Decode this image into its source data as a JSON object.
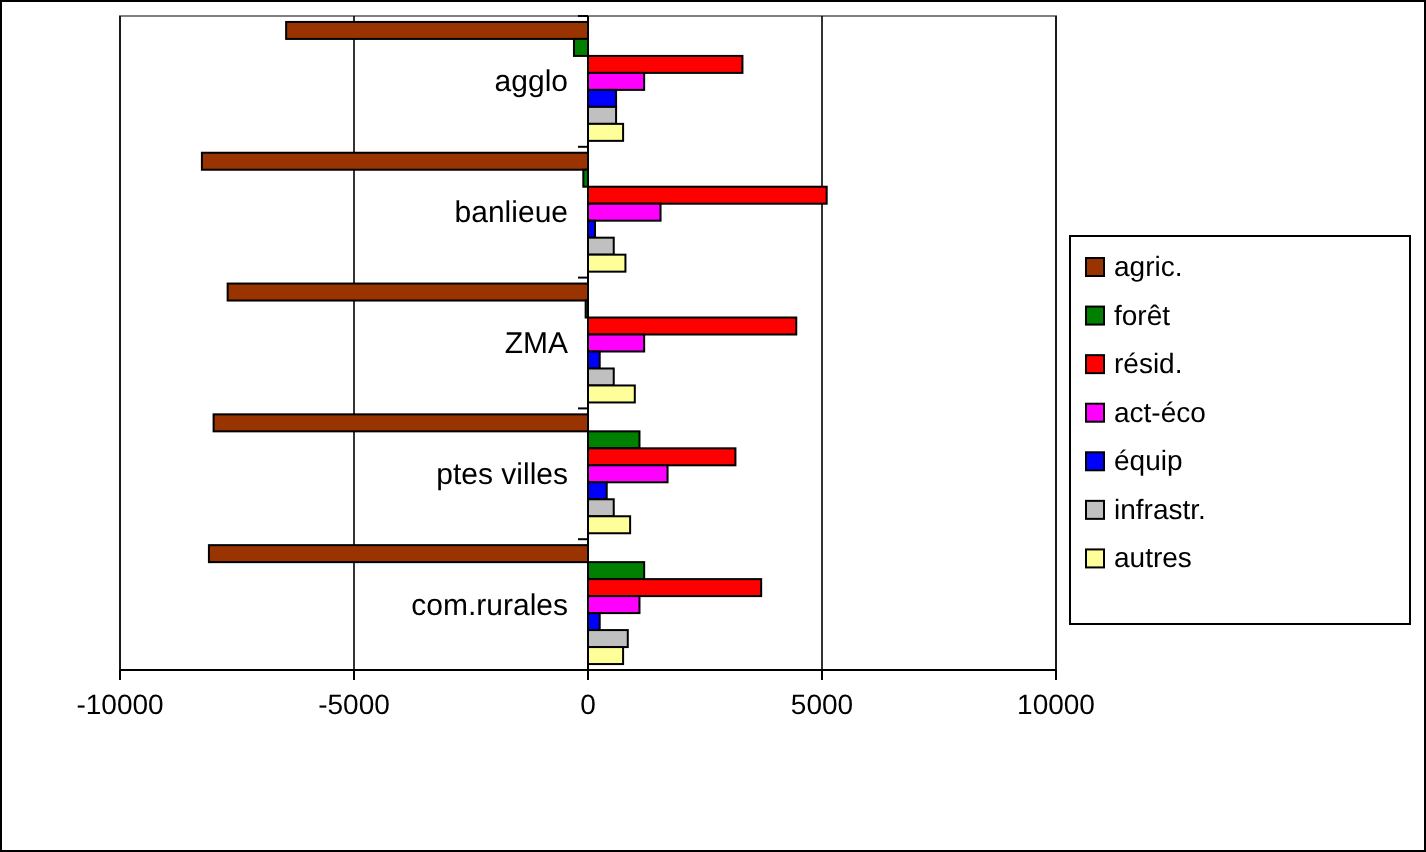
{
  "chart_data": {
    "type": "bar",
    "orientation": "horizontal",
    "categories": [
      "agglo",
      "banlieue",
      "ZMA",
      "ptes villes",
      "com.rurales"
    ],
    "series": [
      {
        "name": "agric.",
        "color": "#993300",
        "values": [
          -6450,
          -8250,
          -7700,
          -8000,
          -8100
        ]
      },
      {
        "name": "forêt",
        "color": "#008000",
        "values": [
          -300,
          -100,
          -50,
          1100,
          1200
        ]
      },
      {
        "name": "résid.",
        "color": "#ff0000",
        "values": [
          3300,
          5100,
          4450,
          3150,
          3700
        ]
      },
      {
        "name": "act-éco",
        "color": "#ff00ff",
        "values": [
          1200,
          1550,
          1200,
          1700,
          1100
        ]
      },
      {
        "name": "équip",
        "color": "#0000ff",
        "values": [
          600,
          150,
          250,
          400,
          250
        ]
      },
      {
        "name": "infrastr.",
        "color": "#c0c0c0",
        "values": [
          600,
          550,
          550,
          550,
          850
        ]
      },
      {
        "name": "autres",
        "color": "#ffff99",
        "values": [
          750,
          800,
          1000,
          900,
          750
        ]
      }
    ],
    "xlim": [
      -10000,
      10000
    ],
    "xticks": [
      -10000,
      -5000,
      0,
      5000,
      10000
    ],
    "grid": "x",
    "legend": "right"
  }
}
